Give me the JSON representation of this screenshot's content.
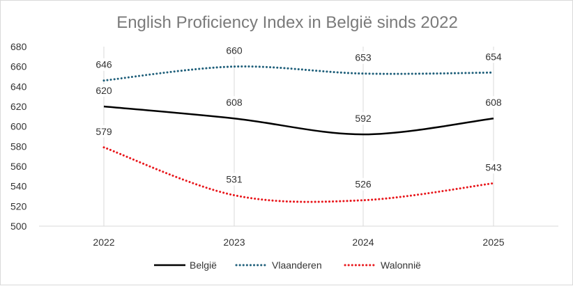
{
  "chart_data": {
    "type": "line",
    "title": "English Proficiency Index in België sinds 2022",
    "categories": [
      "2022",
      "2023",
      "2024",
      "2025"
    ],
    "ylim": [
      500,
      680
    ],
    "ytick_step": 20,
    "grid": "vertical",
    "legend_position": "bottom",
    "series": [
      {
        "name": "België",
        "values": [
          620,
          608,
          592,
          608
        ],
        "color": "#000000",
        "style": "solid"
      },
      {
        "name": "Vlaanderen",
        "values": [
          646,
          660,
          653,
          654
        ],
        "color": "#1f5f7a",
        "style": "dotted"
      },
      {
        "name": "Walonnië",
        "values": [
          579,
          531,
          526,
          543
        ],
        "color": "#e8161b",
        "style": "dotted"
      }
    ]
  }
}
